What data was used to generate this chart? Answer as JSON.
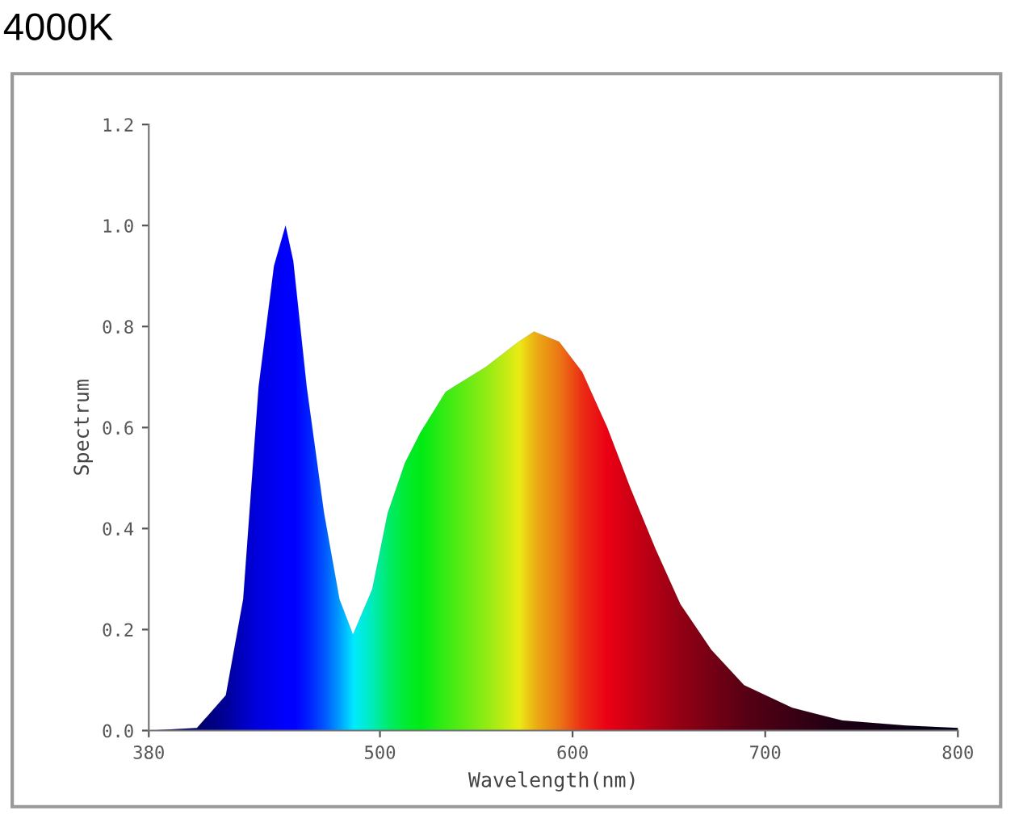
{
  "chart_data": {
    "type": "area",
    "title": "4000K",
    "xlabel": "Wavelength(nm)",
    "ylabel": "Spectrum",
    "xlim": [
      380,
      800
    ],
    "xticks": [
      380,
      500,
      600,
      700,
      800
    ],
    "ylim": [
      0,
      1.2
    ],
    "yticks": [
      {
        "value": 0,
        "label": "0.0"
      },
      0.2,
      0.4,
      0.6,
      0.8,
      {
        "value": 1,
        "label": "1.0"
      },
      1.2
    ],
    "grid": false,
    "legend": false,
    "series": [
      {
        "x": [
          380,
          405,
          420,
          429,
          437,
          445,
          451,
          455,
          462,
          471,
          479,
          486,
          496,
          504,
          513,
          521,
          534,
          538,
          555,
          572,
          580,
          593,
          605,
          618,
          630,
          643,
          656,
          672,
          689,
          714,
          740,
          773,
          800
        ],
        "values": [
          0,
          0.005,
          0.07,
          0.26,
          0.68,
          0.92,
          1.0,
          0.93,
          0.68,
          0.43,
          0.26,
          0.19,
          0.28,
          0.43,
          0.53,
          0.59,
          0.67,
          0.68,
          0.72,
          0.77,
          0.79,
          0.77,
          0.71,
          0.6,
          0.48,
          0.36,
          0.25,
          0.16,
          0.09,
          0.045,
          0.02,
          0.01,
          0.005
        ],
        "colors": [
          "#000040",
          "#000060",
          "#000090",
          "#0000c0",
          "#0000e0",
          "#0000f0",
          "#0000ff",
          "#0000ff",
          "#0020ff",
          "#0060ff",
          "#00b0ff",
          "#00ffff",
          "#00ffb0",
          "#00ff60",
          "#00ff20",
          "#00ff00",
          "#40ff00",
          "#50ff00",
          "#a0ff00",
          "#ffff00",
          "#ffc000",
          "#ff8000",
          "#ff3000",
          "#ff0000",
          "#e00000",
          "#c00000",
          "#a00000",
          "#800000",
          "#600000",
          "#400000",
          "#200000",
          "#100000",
          "#000000"
        ]
      }
    ]
  }
}
